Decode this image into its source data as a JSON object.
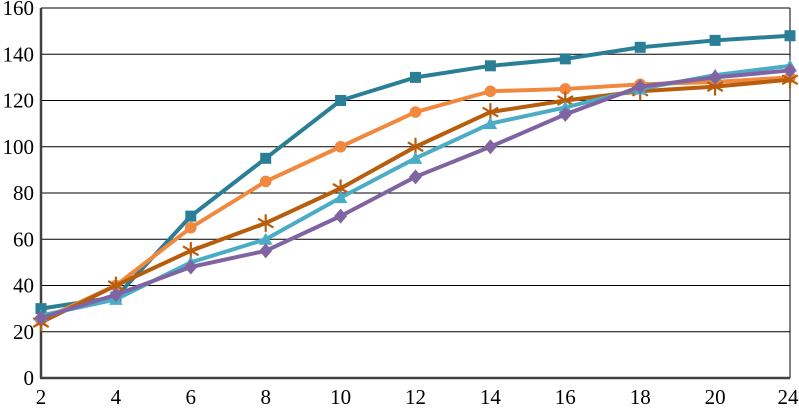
{
  "chart_data": {
    "type": "line",
    "title": "",
    "xlabel": "",
    "ylabel": "",
    "categories": [
      2,
      4,
      6,
      8,
      10,
      12,
      14,
      16,
      18,
      20,
      24
    ],
    "xticklabels": [
      "2",
      "4",
      "6",
      "8",
      "10",
      "12",
      "14",
      "16",
      "18",
      "20",
      "24"
    ],
    "yticks": [
      0,
      20,
      40,
      60,
      80,
      100,
      120,
      140,
      160
    ],
    "ylim": [
      0,
      160
    ],
    "grid": "horizontal",
    "legend": "none",
    "plot_border": true,
    "axis_color": "#404040",
    "gridline_color": "#000000",
    "label_color": "#000000",
    "background_color": "#ffffff",
    "series": [
      {
        "name": "teal-squares",
        "marker": "square",
        "color": "#2A7F96",
        "values": [
          30,
          35,
          70,
          95,
          120,
          130,
          135,
          138,
          143,
          146,
          148
        ]
      },
      {
        "name": "orange-circles",
        "marker": "circle",
        "color": "#F0883E",
        "values": [
          25,
          40,
          65,
          85,
          100,
          115,
          124,
          125,
          127,
          128,
          130
        ]
      },
      {
        "name": "darkorange-asterisks",
        "marker": "asterisk",
        "color": "#B85D0C",
        "values": [
          24,
          40,
          55,
          67,
          82,
          100,
          115,
          120,
          124,
          126,
          129
        ]
      },
      {
        "name": "lightblue-triangles",
        "marker": "triangle",
        "color": "#4BACC6",
        "values": [
          27,
          34,
          50,
          60,
          78,
          95,
          110,
          117,
          125,
          131,
          135
        ]
      },
      {
        "name": "purple-diamonds",
        "marker": "diamond",
        "color": "#8064A2",
        "values": [
          26,
          36,
          48,
          55,
          70,
          87,
          100,
          114,
          126,
          130,
          133
        ]
      }
    ]
  }
}
